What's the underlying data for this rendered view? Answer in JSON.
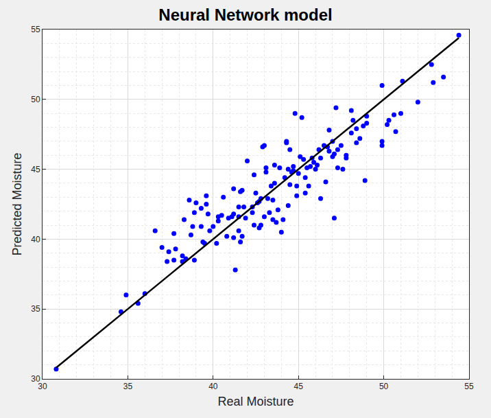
{
  "chart_data": {
    "type": "scatter",
    "title": "Neural Network model",
    "x_label": "Real Moisture",
    "y_label": "Predicted Moisture",
    "xlim": [
      30,
      55
    ],
    "ylim": [
      30,
      55
    ],
    "xticks": [
      30,
      35,
      40,
      45,
      50,
      55
    ],
    "yticks": [
      30,
      35,
      40,
      45,
      50,
      55
    ],
    "grid": true,
    "series": [
      {
        "type": "scatter",
        "color": "#0000ff",
        "marker": "circle",
        "x": [
          30.8,
          34.6,
          34.9,
          35.6,
          36.0,
          36.6,
          37.0,
          37.3,
          37.4,
          37.7,
          37.7,
          37.8,
          38.2,
          38.2,
          38.3,
          38.6,
          38.4,
          38.7,
          38.8,
          38.9,
          39.0,
          38.9,
          39.3,
          39.3,
          39.4,
          39.5,
          39.6,
          39.6,
          39.7,
          39.8,
          40.0,
          40.2,
          40.3,
          40.3,
          40.5,
          40.6,
          40.8,
          40.9,
          41.1,
          41.2,
          41.2,
          41.2,
          41.3,
          41.5,
          41.5,
          41.5,
          41.6,
          41.6,
          41.7,
          41.7,
          41.8,
          41.9,
          42.0,
          42.3,
          42.3,
          42.4,
          42.4,
          42.5,
          42.6,
          42.7,
          42.7,
          42.8,
          42.8,
          42.9,
          43.0,
          43.0,
          43.1,
          43.1,
          43.2,
          43.3,
          43.4,
          43.5,
          43.5,
          43.6,
          43.6,
          43.7,
          43.8,
          43.9,
          44.0,
          44.1,
          44.2,
          44.3,
          44.3,
          44.4,
          44.4,
          44.5,
          44.5,
          44.6,
          44.7,
          44.7,
          44.8,
          44.9,
          44.9,
          45.0,
          45.1,
          45.2,
          45.3,
          45.4,
          45.4,
          45.5,
          45.6,
          45.7,
          45.8,
          45.9,
          46.0,
          46.1,
          46.2,
          46.3,
          46.3,
          46.5,
          46.6,
          46.7,
          46.8,
          46.8,
          47.0,
          47.0,
          47.1,
          47.1,
          47.2,
          47.3,
          47.3,
          47.5,
          47.6,
          47.8,
          47.8,
          48.1,
          48.1,
          48.2,
          48.4,
          48.4,
          48.6,
          48.8,
          49.0,
          48.9,
          49.0,
          49.9,
          49.9,
          49.9,
          50.2,
          50.3,
          50.6,
          50.7,
          51.0,
          51.1,
          52.0,
          52.8,
          52.9,
          53.5,
          54.4
        ],
        "values": [
          30.7,
          34.8,
          36.0,
          35.4,
          36.1,
          40.6,
          39.4,
          38.4,
          39.1,
          40.4,
          38.5,
          39.3,
          38.4,
          38.8,
          41.4,
          42.8,
          38.6,
          40.3,
          40.9,
          41.9,
          42.6,
          38.5,
          40.9,
          42.2,
          39.8,
          39.7,
          42.5,
          43.1,
          41.8,
          40.6,
          40.9,
          39.7,
          41.3,
          41.6,
          41.7,
          43.0,
          40.2,
          41.5,
          41.6,
          41.8,
          43.6,
          40.1,
          37.8,
          40.6,
          41.6,
          42.3,
          43.4,
          39.8,
          40.2,
          43.5,
          42.3,
          41.5,
          45.6,
          41.9,
          42.3,
          44.6,
          41.0,
          43.3,
          42.6,
          42.7,
          40.8,
          41.0,
          42.9,
          46.6,
          46.7,
          41.6,
          44.8,
          45.1,
          42.9,
          41.9,
          43.8,
          41.4,
          42.8,
          44.0,
          45.3,
          41.2,
          42.1,
          45.1,
          40.5,
          41.4,
          44.4,
          46.9,
          47.0,
          42.4,
          45.0,
          43.9,
          46.4,
          44.8,
          45.2,
          44.9,
          49.0,
          43.1,
          43.8,
          44.7,
          45.9,
          48.7,
          45.7,
          43.3,
          44.4,
          45.1,
          43.8,
          45.2,
          45.8,
          45.5,
          45.0,
          45.3,
          46.4,
          42.9,
          45.8,
          46.7,
          44.1,
          46.6,
          47.8,
          46.3,
          45.9,
          47.0,
          41.5,
          46.1,
          49.4,
          46.4,
          45.1,
          46.7,
          45.0,
          46.0,
          45.8,
          47.6,
          49.2,
          48.5,
          47.9,
          46.9,
          47.2,
          48.1,
          48.8,
          44.2,
          48.3,
          46.7,
          47.0,
          51.0,
          48.2,
          48.5,
          48.9,
          47.7,
          49.0,
          51.3,
          49.8,
          52.5,
          51.2,
          51.6,
          54.6
        ]
      },
      {
        "type": "line",
        "color": "#000000",
        "line_style": "solid",
        "x": [
          30.8,
          54.4
        ],
        "values": [
          30.8,
          54.4
        ]
      }
    ]
  }
}
